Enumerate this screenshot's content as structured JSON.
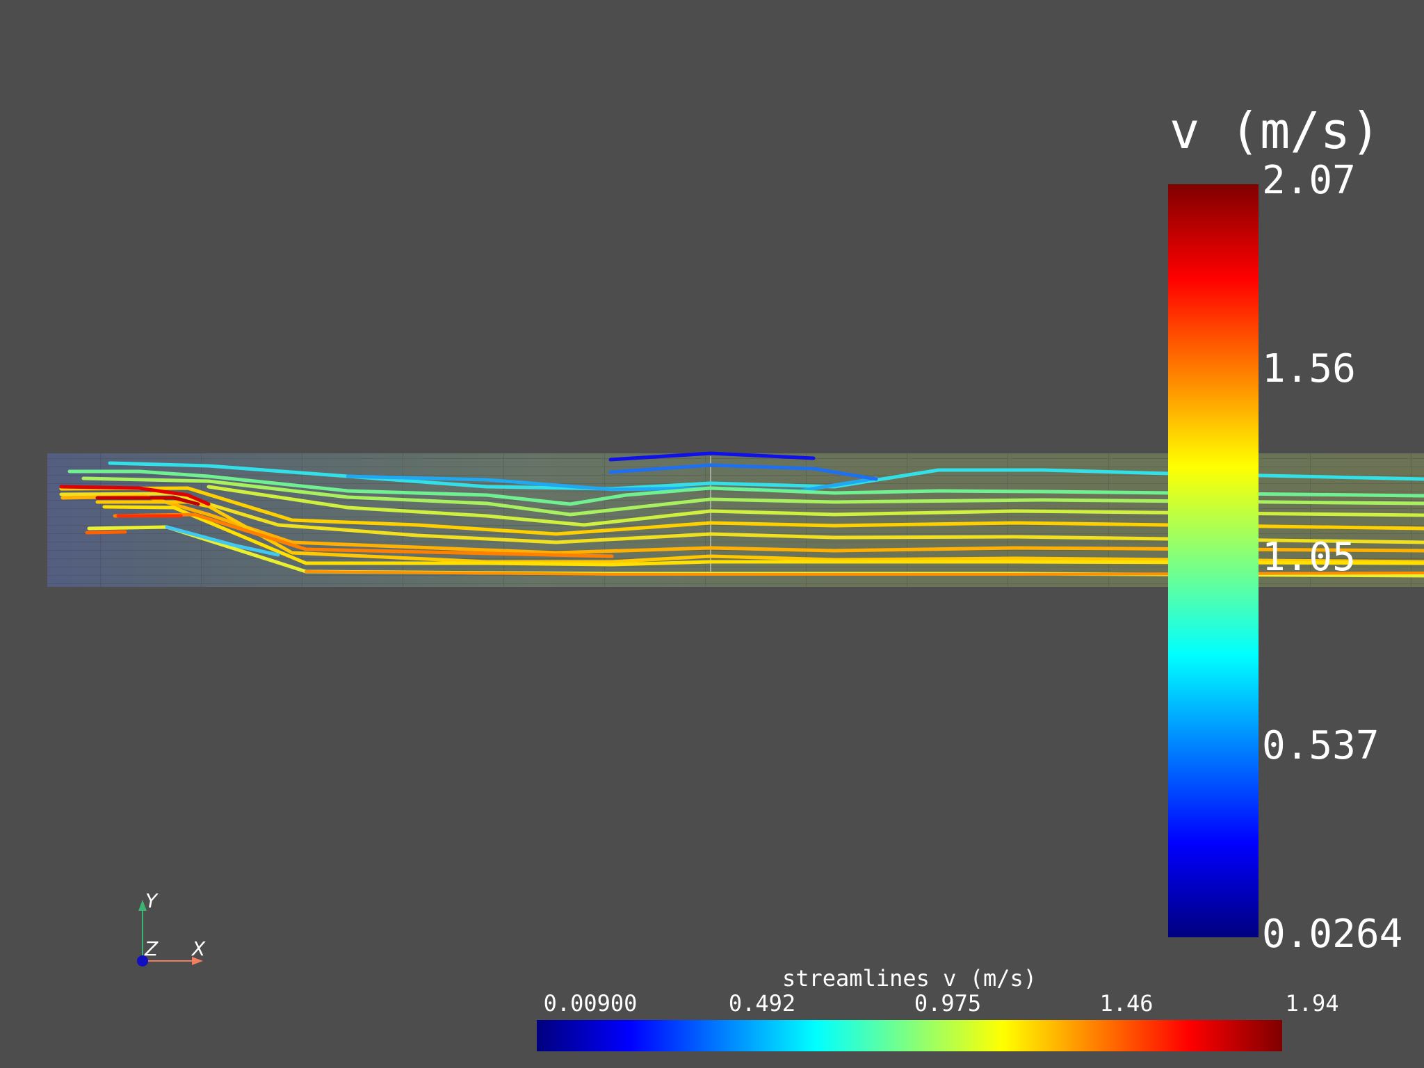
{
  "scalar_bar": {
    "title": "v (m/s)",
    "ticks": [
      "2.07",
      "1.56",
      "1.05",
      "0.537",
      "0.0264"
    ]
  },
  "streamline_bar": {
    "title": "streamlines v (m/s)",
    "ticks": [
      "0.00900",
      "0.492",
      "0.975",
      "1.46",
      "1.94"
    ]
  },
  "axes_widget": {
    "x": "X",
    "y": "Y",
    "z": "Z"
  },
  "colors": {
    "background": "#4d4d4d",
    "colormap": "jet",
    "axis_x": "#f07f5f",
    "axis_y": "#3cb371",
    "axis_z": "#1010c0"
  }
}
